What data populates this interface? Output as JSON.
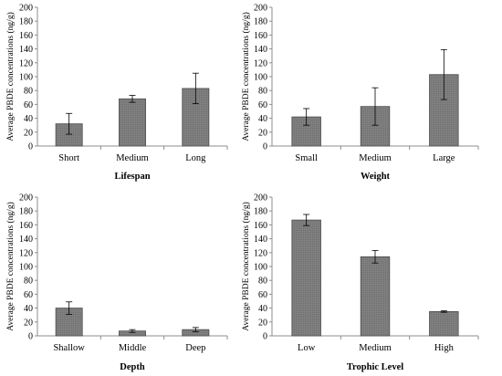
{
  "chart_data": [
    {
      "type": "bar",
      "xlabel": "Lifespan",
      "ylabel": "Average PBDE concentrations (ng/g)",
      "categories": [
        "Short",
        "Medium",
        "Long"
      ],
      "values": [
        32,
        68,
        83
      ],
      "errors": [
        15,
        5,
        22
      ],
      "ylim": [
        0,
        200
      ],
      "yticks": [
        "0",
        "20",
        "40",
        "60",
        "80",
        "100",
        "120",
        "140",
        "160",
        "180",
        "200"
      ],
      "bar_color": "#7f7f7f",
      "grid": false
    },
    {
      "type": "bar",
      "xlabel": "Weight",
      "ylabel": "Average PBDE concentrations (ng/g)",
      "categories": [
        "Small",
        "Medium",
        "Large"
      ],
      "values": [
        42,
        57,
        103
      ],
      "errors": [
        12,
        27,
        36
      ],
      "ylim": [
        0,
        200
      ],
      "yticks": [
        "0",
        "20",
        "40",
        "60",
        "80",
        "100",
        "120",
        "140",
        "160",
        "180",
        "200"
      ],
      "bar_color": "#7f7f7f",
      "grid": false
    },
    {
      "type": "bar",
      "xlabel": "Depth",
      "ylabel": "Average PBDE concentrations (ng/g)",
      "categories": [
        "Shallow",
        "Middle",
        "Deep"
      ],
      "values": [
        40,
        7,
        9
      ],
      "errors": [
        9,
        2,
        3
      ],
      "ylim": [
        0,
        200
      ],
      "yticks": [
        "0",
        "20",
        "40",
        "60",
        "80",
        "100",
        "120",
        "140",
        "160",
        "180",
        "200"
      ],
      "bar_color": "#7f7f7f",
      "grid": false
    },
    {
      "type": "bar",
      "xlabel": "Trophic Level",
      "ylabel": "Average PBDE concentrations (ng/g)",
      "categories": [
        "Low",
        "Medium",
        "High"
      ],
      "values": [
        167,
        114,
        35
      ],
      "errors": [
        8,
        9,
        1
      ],
      "ylim": [
        0,
        200
      ],
      "yticks": [
        "0",
        "20",
        "40",
        "60",
        "80",
        "100",
        "120",
        "140",
        "160",
        "180",
        "200"
      ],
      "bar_color": "#7f7f7f",
      "grid": false
    }
  ]
}
